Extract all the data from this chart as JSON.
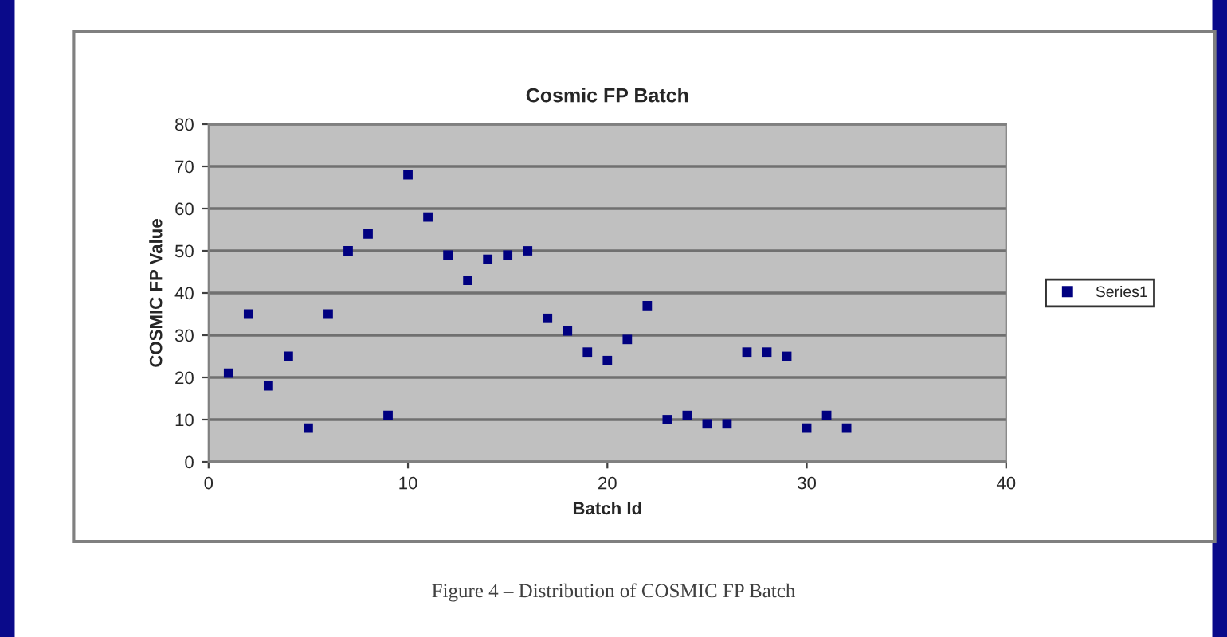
{
  "chart_data": {
    "type": "scatter",
    "title": "Cosmic FP Batch",
    "xlabel": "Batch Id",
    "ylabel": "COSMIC FP Value",
    "x": [
      1,
      2,
      3,
      4,
      5,
      6,
      7,
      8,
      9,
      10,
      11,
      12,
      13,
      14,
      15,
      16,
      17,
      18,
      19,
      20,
      21,
      22,
      23,
      24,
      25,
      26,
      27,
      28,
      29,
      30,
      31,
      32
    ],
    "series": [
      {
        "name": "Series1",
        "color": "#000080",
        "values": [
          21,
          35,
          18,
          25,
          8,
          35,
          50,
          54,
          11,
          68,
          58,
          49,
          43,
          48,
          49,
          50,
          34,
          31,
          26,
          24,
          29,
          37,
          10,
          11,
          9,
          9,
          26,
          26,
          25,
          8,
          11,
          8
        ]
      }
    ],
    "xlim": [
      0,
      40
    ],
    "xticks": [
      0,
      10,
      20,
      30,
      40
    ],
    "ylim": [
      0,
      80
    ],
    "yticks": [
      0,
      10,
      20,
      30,
      40,
      50,
      60,
      70,
      80
    ],
    "grid": "y",
    "legend": "right",
    "marker": "square",
    "annotations": [
      "Figure 4 – Distribution of COSMIC FP Batch"
    ]
  }
}
